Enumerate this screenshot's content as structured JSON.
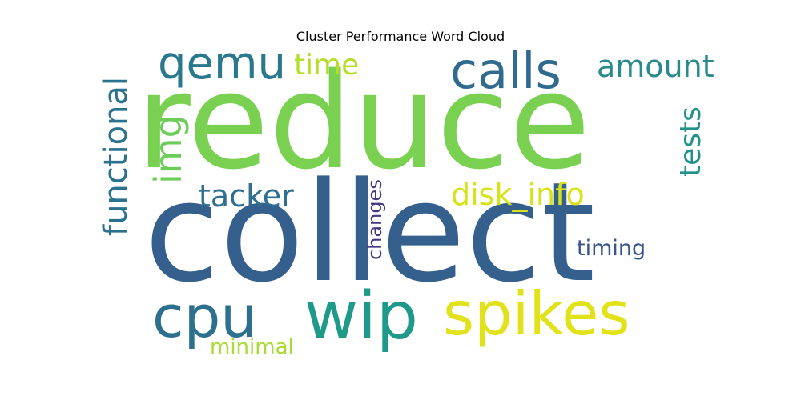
{
  "chart_data": {
    "type": "wordcloud",
    "title": "Cluster Performance Word Cloud",
    "words": [
      {
        "text": "reduce",
        "rank": 1,
        "color": "#7ad151"
      },
      {
        "text": "collect",
        "rank": 2,
        "color": "#35608d"
      },
      {
        "text": "spikes",
        "rank": 3,
        "color": "#e1e21a"
      },
      {
        "text": "wip",
        "rank": 4,
        "color": "#1f9a8a"
      },
      {
        "text": "cpu",
        "rank": 5,
        "color": "#2d708e"
      },
      {
        "text": "calls",
        "rank": 6,
        "color": "#306a8e"
      },
      {
        "text": "qemu",
        "rank": 7,
        "color": "#2a788e"
      },
      {
        "text": "functional",
        "rank": 8,
        "color": "#2c718e"
      },
      {
        "text": "amount",
        "rank": 9,
        "color": "#2a8a8c"
      },
      {
        "text": "img",
        "rank": 10,
        "color": "#6ccd5a"
      },
      {
        "text": "tests",
        "rank": 11,
        "color": "#21918c"
      },
      {
        "text": "disk_info",
        "rank": 12,
        "color": "#d8e219"
      },
      {
        "text": "tacker",
        "rank": 13,
        "color": "#2e6e8e"
      },
      {
        "text": "time",
        "rank": 14,
        "color": "#b5de2b"
      },
      {
        "text": "changes",
        "rank": 15,
        "color": "#443983"
      },
      {
        "text": "timing",
        "rank": 16,
        "color": "#39568c"
      },
      {
        "text": "minimal",
        "rank": 17,
        "color": "#a8db34"
      }
    ]
  }
}
